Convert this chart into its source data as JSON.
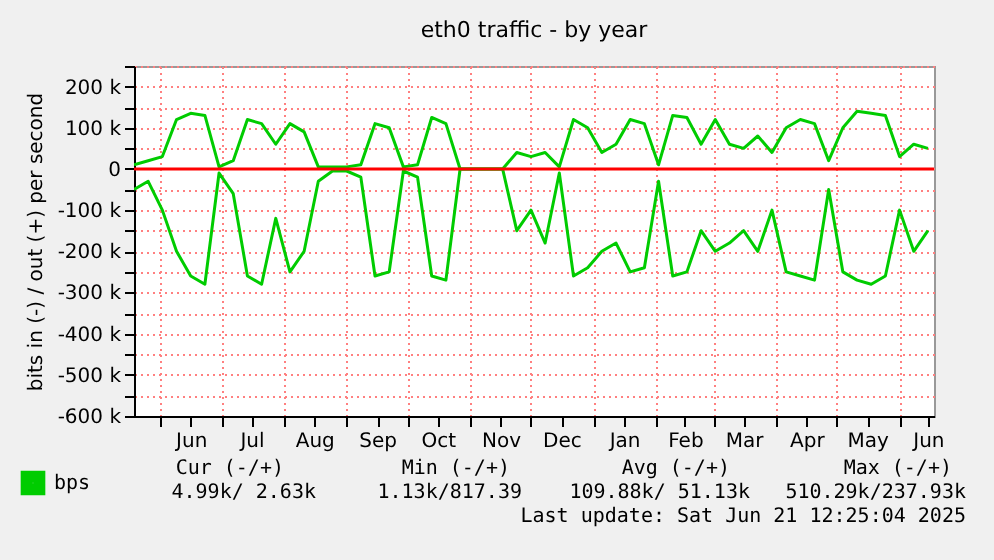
{
  "chart_data": {
    "type": "line",
    "title": "eth0 traffic - by year",
    "ylabel": "bits in (-) / out (+) per second",
    "x": [
      "2024-05-19",
      "2024-05-26",
      "2024-06-02",
      "2024-06-09",
      "2024-06-16",
      "2024-06-23",
      "2024-06-30",
      "2024-07-07",
      "2024-07-14",
      "2024-07-21",
      "2024-07-28",
      "2024-08-04",
      "2024-08-11",
      "2024-08-18",
      "2024-08-25",
      "2024-09-01",
      "2024-09-08",
      "2024-09-15",
      "2024-09-22",
      "2024-09-29",
      "2024-10-06",
      "2024-10-13",
      "2024-10-20",
      "2024-10-27",
      "2024-11-03",
      "2024-11-10",
      "2024-11-17",
      "2024-11-24",
      "2024-12-01",
      "2024-12-08",
      "2024-12-15",
      "2024-12-22",
      "2024-12-29",
      "2025-01-05",
      "2025-01-12",
      "2025-01-19",
      "2025-01-26",
      "2025-02-02",
      "2025-02-09",
      "2025-02-16",
      "2025-02-23",
      "2025-03-02",
      "2025-03-09",
      "2025-03-16",
      "2025-03-23",
      "2025-03-30",
      "2025-04-06",
      "2025-04-13",
      "2025-04-20",
      "2025-04-27",
      "2025-05-04",
      "2025-05-11",
      "2025-05-18",
      "2025-05-25",
      "2025-06-01",
      "2025-06-08",
      "2025-06-15"
    ],
    "series": [
      {
        "name": "bps",
        "color": "#00cc00",
        "values": [
          10000,
          20000,
          30000,
          120000,
          135000,
          130000,
          5000,
          20000,
          120000,
          110000,
          60000,
          110000,
          90000,
          5000,
          5000,
          5000,
          10000,
          110000,
          100000,
          5000,
          10000,
          125000,
          110000,
          0,
          0,
          0,
          0,
          40000,
          30000,
          40000,
          5000,
          120000,
          100000,
          40000,
          60000,
          120000,
          110000,
          10000,
          130000,
          125000,
          60000,
          120000,
          60000,
          50000,
          80000,
          40000,
          100000,
          120000,
          110000,
          20000,
          100000,
          140000,
          135000,
          130000,
          30000,
          60000,
          50000
        ]
      },
      {
        "color": "#00cc00",
        "values": [
          -50000,
          -30000,
          -100000,
          -200000,
          -260000,
          -280000,
          -10000,
          -60000,
          -260000,
          -280000,
          -120000,
          -250000,
          -200000,
          -30000,
          -5000,
          -5000,
          -20000,
          -260000,
          -250000,
          -5000,
          -20000,
          -260000,
          -270000,
          0,
          0,
          0,
          0,
          -150000,
          -100000,
          -180000,
          -10000,
          -260000,
          -240000,
          -200000,
          -180000,
          -250000,
          -240000,
          -30000,
          -260000,
          -250000,
          -150000,
          -200000,
          -180000,
          -150000,
          -200000,
          -100000,
          -250000,
          -260000,
          -270000,
          -50000,
          -250000,
          -270000,
          -280000,
          -260000,
          -100000,
          -200000,
          -150000
        ]
      }
    ],
    "xlim": [
      "2024-05-19",
      "2025-06-18"
    ],
    "xticks": [
      {
        "value": "2024-06-01",
        "label": null
      },
      {
        "value": "2024-06-16",
        "label": "Jun"
      },
      {
        "value": "2024-07-01",
        "label": null
      },
      {
        "value": "2024-07-16",
        "label": "Jul"
      },
      {
        "value": "2024-08-01",
        "label": null
      },
      {
        "value": "2024-08-16",
        "label": "Aug"
      },
      {
        "value": "2024-09-01",
        "label": null
      },
      {
        "value": "2024-09-16",
        "label": "Sep"
      },
      {
        "value": "2024-10-01",
        "label": null
      },
      {
        "value": "2024-10-16",
        "label": "Oct"
      },
      {
        "value": "2024-11-01",
        "label": null
      },
      {
        "value": "2024-11-16",
        "label": "Nov"
      },
      {
        "value": "2024-12-01",
        "label": null
      },
      {
        "value": "2024-12-16",
        "label": "Dec"
      },
      {
        "value": "2025-01-01",
        "label": null
      },
      {
        "value": "2025-01-16",
        "label": "Jan"
      },
      {
        "value": "2025-02-01",
        "label": null
      },
      {
        "value": "2025-02-15",
        "label": "Feb"
      },
      {
        "value": "2025-03-01",
        "label": null
      },
      {
        "value": "2025-03-16",
        "label": "Mar"
      },
      {
        "value": "2025-04-01",
        "label": null
      },
      {
        "value": "2025-04-16",
        "label": "Apr"
      },
      {
        "value": "2025-05-01",
        "label": null
      },
      {
        "value": "2025-05-16",
        "label": "May"
      },
      {
        "value": "2025-06-01",
        "label": null
      },
      {
        "value": "2025-06-15",
        "label": "Jun"
      }
    ],
    "ylim": [
      -600000,
      250000
    ],
    "yticks": [
      {
        "value": -600000,
        "label": "-600 k"
      },
      {
        "value": -550000,
        "label": null
      },
      {
        "value": -500000,
        "label": "-500 k"
      },
      {
        "value": -450000,
        "label": null
      },
      {
        "value": -400000,
        "label": "-400 k"
      },
      {
        "value": -350000,
        "label": null
      },
      {
        "value": -300000,
        "label": "-300 k"
      },
      {
        "value": -250000,
        "label": null
      },
      {
        "value": -200000,
        "label": "-200 k"
      },
      {
        "value": -150000,
        "label": null
      },
      {
        "value": -100000,
        "label": "-100 k"
      },
      {
        "value": -50000,
        "label": null
      },
      0,
      {
        "value": 50000,
        "label": null
      },
      {
        "value": 100000,
        "label": "100 k"
      },
      {
        "value": 150000,
        "label": null
      },
      {
        "value": 200000,
        "label": "200 k"
      },
      {
        "value": 250000,
        "label": null
      }
    ],
    "grid": true,
    "legend": "bottom left",
    "ref_lines": [
      {
        "axis": "y",
        "value": 0,
        "color": "#ff0000"
      }
    ],
    "annotations": [
      "Cur (-/+)",
      "Min (-/+)",
      "Avg (-/+)",
      "Max (-/+)",
      "4.99k/   2.63k",
      "1.13k/817.39",
      "109.88k/ 51.13k",
      "510.29k/237.93k",
      "Last update: Sat Jun 21 12:25:04 2025"
    ]
  }
}
